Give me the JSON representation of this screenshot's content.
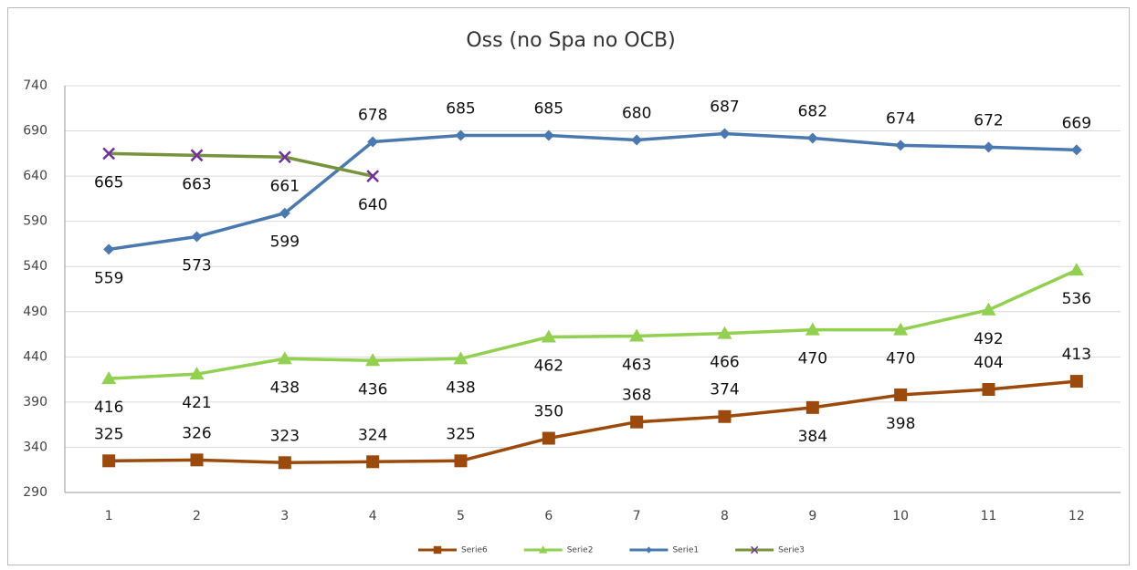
{
  "chart_data": {
    "type": "line",
    "title": "Oss (no Spa no OCB)",
    "categories": [
      "1",
      "2",
      "3",
      "4",
      "5",
      "6",
      "7",
      "8",
      "9",
      "10",
      "11",
      "12"
    ],
    "series": [
      {
        "name": "Serie6",
        "color": "#9c4a0c",
        "marker_color": "#9c4a0c",
        "marker": "square",
        "values": [
          325,
          326,
          323,
          324,
          325,
          350,
          368,
          374,
          384,
          398,
          404,
          413
        ]
      },
      {
        "name": "Serie2",
        "color": "#92d050",
        "marker_color": "#92d050",
        "marker": "triangle",
        "values": [
          416,
          421,
          438,
          436,
          438,
          462,
          463,
          466,
          470,
          470,
          492,
          536
        ]
      },
      {
        "name": "Serie1",
        "color": "#4a78b0",
        "marker_color": "#4a78b0",
        "marker": "diamond",
        "values": [
          559,
          573,
          599,
          678,
          685,
          685,
          680,
          687,
          682,
          674,
          672,
          669
        ]
      },
      {
        "name": "Serie3",
        "color": "#77933c",
        "marker_color": "#7030a0",
        "marker": "x",
        "values": [
          665,
          663,
          661,
          640,
          null,
          null,
          null,
          null,
          null,
          null,
          null,
          null
        ]
      }
    ],
    "ylim": [
      290,
      740
    ],
    "yticks": [
      290,
      340,
      390,
      440,
      490,
      540,
      590,
      640,
      690,
      740
    ],
    "grid": true,
    "legend": "bottom"
  }
}
